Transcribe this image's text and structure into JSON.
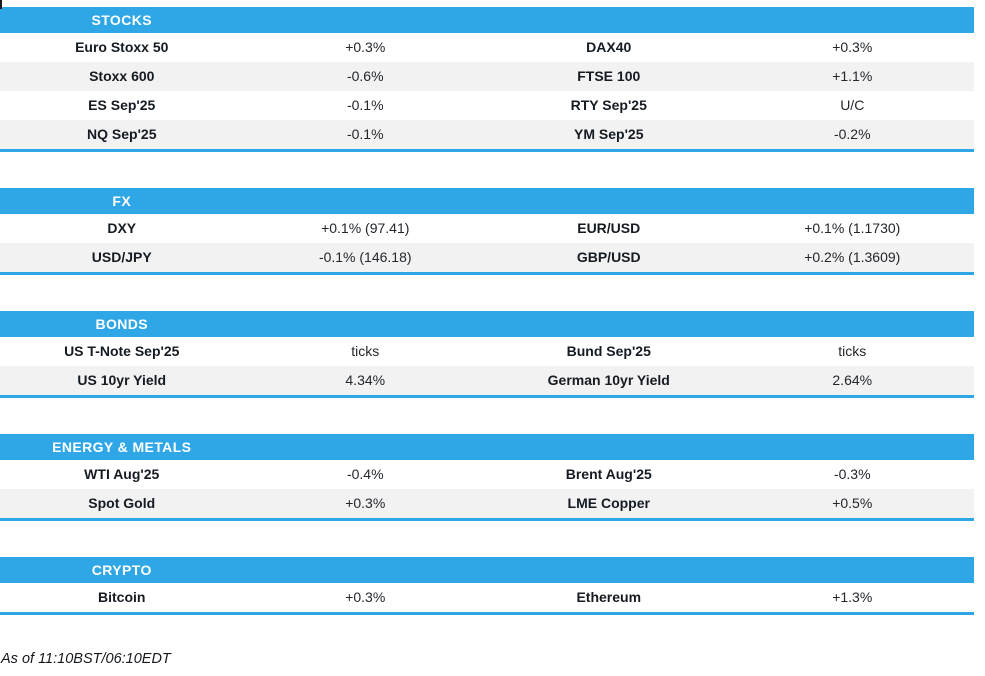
{
  "colors": {
    "accent": "#2FA7E6",
    "row_alt": "#F2F2F2",
    "header_text": "#FFFFFF",
    "name_text": "#151B22",
    "value_text": "#23272C"
  },
  "sections": [
    {
      "title": "STOCKS",
      "rows": [
        [
          "Euro Stoxx 50",
          "+0.3%",
          "DAX40",
          "+0.3%"
        ],
        [
          "Stoxx 600",
          "-0.6%",
          "FTSE 100",
          "+1.1%"
        ],
        [
          "ES Sep'25",
          "-0.1%",
          "RTY Sep'25",
          "U/C"
        ],
        [
          "NQ Sep'25",
          "-0.1%",
          "YM Sep'25",
          "-0.2%"
        ]
      ]
    },
    {
      "title": "FX",
      "rows": [
        [
          "DXY",
          "+0.1% (97.41)",
          "EUR/USD",
          "+0.1% (1.1730)"
        ],
        [
          "USD/JPY",
          "-0.1% (146.18)",
          "GBP/USD",
          "+0.2% (1.3609)"
        ]
      ]
    },
    {
      "title": "BONDS",
      "rows": [
        [
          "US T-Note Sep'25",
          "ticks",
          "Bund Sep'25",
          "ticks"
        ],
        [
          "US 10yr Yield",
          "4.34%",
          "German 10yr Yield",
          "2.64%"
        ]
      ]
    },
    {
      "title": "ENERGY & METALS",
      "rows": [
        [
          "WTI Aug'25",
          "-0.4%",
          "Brent Aug'25",
          "-0.3%"
        ],
        [
          "Spot Gold",
          "+0.3%",
          "LME Copper",
          "+0.5%"
        ]
      ]
    },
    {
      "title": "CRYPTO",
      "rows": [
        [
          "Bitcoin",
          "+0.3%",
          "Ethereum",
          "+1.3%"
        ]
      ]
    }
  ],
  "footer": {
    "as_of": "As of 11:10BST/06:10EDT"
  }
}
